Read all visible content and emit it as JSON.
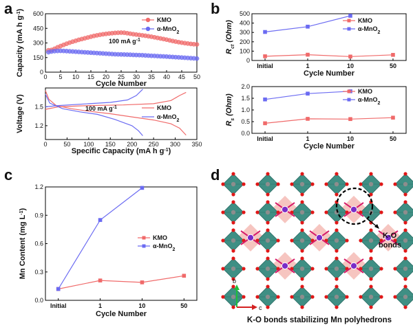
{
  "panels": {
    "a": "a",
    "b": "b",
    "c": "c",
    "d": "d"
  },
  "colors": {
    "kmo": "#f06a6a",
    "mno2": "#6b6bf2",
    "octahedron": "#3f8f84",
    "oxygen": "#e01818",
    "potassium": "#7a2cc8",
    "kobond": "#d61a6a",
    "mnShell": "#f4b6b0"
  },
  "chart_data": [
    {
      "id": "a-top",
      "type": "scatter",
      "xlabel": "Cycle Number",
      "ylabel": "Capacity (mA h g",
      "ylabel_sup": "-1",
      "ylabel_tail": ")",
      "xlim": [
        0,
        50
      ],
      "ylim": [
        0,
        600
      ],
      "xticks": [
        "0",
        "5",
        "10",
        "15",
        "20",
        "25",
        "30",
        "35",
        "40",
        "45",
        "50"
      ],
      "yticks": [
        "0",
        "150",
        "300",
        "450",
        "600"
      ],
      "annotation": "100 mA g",
      "annotation_sup": "-1",
      "legend": [
        "KMO",
        "α-MnO"
      ],
      "legend_sub": "2",
      "series": [
        {
          "name": "KMO",
          "x": [
            1,
            2,
            3,
            4,
            5,
            6,
            7,
            8,
            9,
            10,
            11,
            12,
            13,
            14,
            15,
            16,
            17,
            18,
            19,
            20,
            21,
            22,
            23,
            24,
            25,
            26,
            27,
            28,
            29,
            30,
            31,
            32,
            33,
            34,
            35,
            36,
            37,
            38,
            39,
            40,
            41,
            42,
            43,
            44,
            45,
            46,
            47,
            48,
            49,
            50
          ],
          "y": [
            225,
            228,
            240,
            255,
            268,
            280,
            292,
            303,
            313,
            322,
            332,
            340,
            348,
            356,
            364,
            372,
            378,
            384,
            389,
            393,
            397,
            400,
            403,
            405,
            406,
            405,
            400,
            395,
            390,
            386,
            382,
            378,
            374,
            369,
            364,
            358,
            352,
            346,
            340,
            334,
            327,
            320,
            314,
            308,
            303,
            298,
            294,
            290,
            287,
            285
          ]
        },
        {
          "name": "α-MnO2",
          "x": [
            1,
            2,
            3,
            4,
            5,
            6,
            7,
            8,
            9,
            10,
            11,
            12,
            13,
            14,
            15,
            16,
            17,
            18,
            19,
            20,
            21,
            22,
            23,
            24,
            25,
            26,
            27,
            28,
            29,
            30,
            31,
            32,
            33,
            34,
            35,
            36,
            37,
            38,
            39,
            40,
            41,
            42,
            43,
            44,
            45,
            46,
            47,
            48,
            49,
            50
          ],
          "y": [
            205,
            212,
            216,
            218,
            219,
            218,
            216,
            214,
            212,
            210,
            208,
            206,
            204,
            202,
            200,
            198,
            196,
            194,
            192,
            190,
            188,
            186,
            184,
            183,
            182,
            181,
            180,
            179,
            177,
            176,
            175,
            174,
            172,
            170,
            168,
            167,
            165,
            163,
            162,
            160,
            158,
            156,
            154,
            152,
            150,
            148,
            146,
            144,
            142,
            140
          ]
        }
      ]
    },
    {
      "id": "a-bottom",
      "type": "line",
      "xlabel": "Specific Capacity (mA h g",
      "xlabel_sup": "-1",
      "xlabel_tail": ")",
      "ylabel": "Voltage (V)",
      "xlim": [
        0,
        350
      ],
      "ylim": [
        0.98,
        1.8
      ],
      "xticks": [
        "0",
        "50",
        "100",
        "150",
        "200",
        "250",
        "300",
        "350"
      ],
      "yticks": [
        "1.2",
        "1.5"
      ],
      "ytick_values": [
        1.2,
        1.5
      ],
      "annotation": "100 mA g",
      "annotation_sup": "-1",
      "legend": [
        "KMO",
        "α-MnO"
      ],
      "legend_sub": "2",
      "series": [
        {
          "name": "KMO",
          "discharge": [
            [
              0,
              1.76
            ],
            [
              8,
              1.62
            ],
            [
              25,
              1.52
            ],
            [
              60,
              1.47
            ],
            [
              100,
              1.43
            ],
            [
              150,
              1.39
            ],
            [
              200,
              1.34
            ],
            [
              250,
              1.29
            ],
            [
              290,
              1.23
            ],
            [
              310,
              1.16
            ],
            [
              325,
              1.05
            ]
          ],
          "charge": [
            [
              0,
              1.46
            ],
            [
              30,
              1.5
            ],
            [
              100,
              1.52
            ],
            [
              180,
              1.53
            ],
            [
              250,
              1.55
            ],
            [
              290,
              1.6
            ],
            [
              310,
              1.68
            ],
            [
              325,
              1.73
            ]
          ]
        },
        {
          "name": "α-MnO2",
          "discharge": [
            [
              0,
              1.7
            ],
            [
              10,
              1.56
            ],
            [
              40,
              1.47
            ],
            [
              80,
              1.42
            ],
            [
              120,
              1.38
            ],
            [
              160,
              1.3
            ],
            [
              180,
              1.25
            ],
            [
              200,
              1.2
            ],
            [
              215,
              1.12
            ],
            [
              225,
              1.04
            ]
          ],
          "charge": [
            [
              0,
              1.5
            ],
            [
              30,
              1.52
            ],
            [
              100,
              1.55
            ],
            [
              150,
              1.57
            ],
            [
              190,
              1.61
            ],
            [
              210,
              1.68
            ],
            [
              225,
              1.78
            ]
          ]
        }
      ]
    },
    {
      "id": "b-top",
      "type": "line",
      "categories": [
        "Initial",
        "1",
        "10",
        "50"
      ],
      "xlabel": "Cycle Number",
      "ylabel": "R",
      "ylabel_sub": "ct",
      "ylabel_tail": " (Ohm)",
      "ylim": [
        0,
        500
      ],
      "yticks": [
        "0",
        "100",
        "200",
        "300",
        "400",
        "500"
      ],
      "legend": [
        "KMO",
        "α-MnO"
      ],
      "legend_sub": "2",
      "series": [
        {
          "name": "KMO",
          "values": [
            45,
            62,
            42,
            60
          ]
        },
        {
          "name": "α-MnO2",
          "values": [
            305,
            362,
            478,
            null
          ]
        }
      ]
    },
    {
      "id": "b-bottom",
      "type": "line",
      "categories": [
        "Initial",
        "1",
        "10",
        "50"
      ],
      "xlabel": "Cycle Number",
      "ylabel": "R",
      "ylabel_sub": "s",
      "ylabel_tail": " (Ohm)",
      "ylim": [
        0,
        2.0
      ],
      "yticks": [
        "0.0",
        "0.5",
        "1.0",
        "1.5",
        "2.0"
      ],
      "legend": [
        "KMO",
        "α-MnO"
      ],
      "legend_sub": "2",
      "series": [
        {
          "name": "KMO",
          "values": [
            0.43,
            0.62,
            0.61,
            0.67
          ]
        },
        {
          "name": "α-MnO2",
          "values": [
            1.45,
            1.7,
            1.8,
            null
          ]
        }
      ]
    },
    {
      "id": "c",
      "type": "line",
      "categories": [
        "Initial",
        "1",
        "10",
        "50"
      ],
      "xlabel": "Cycle Number",
      "ylabel": "Mn Content (mg L",
      "ylabel_sup": "-1",
      "ylabel_tail": ")",
      "ylim": [
        0,
        1.2
      ],
      "yticks": [
        "0.0",
        "0.3",
        "0.6",
        "0.9",
        "1.2"
      ],
      "legend": [
        "KMO",
        "α-MnO"
      ],
      "legend_sub": "2",
      "series": [
        {
          "name": "KMO",
          "values": [
            0.12,
            0.21,
            0.19,
            0.26
          ]
        },
        {
          "name": "α-MnO2",
          "values": [
            0.12,
            0.85,
            1.19,
            null
          ]
        }
      ]
    }
  ],
  "structure": {
    "callout": [
      "K-O",
      "bonds"
    ],
    "caption": "K-O bonds stabilizing Mn polyhedrons",
    "axis_b": "b",
    "axis_c": "c"
  }
}
